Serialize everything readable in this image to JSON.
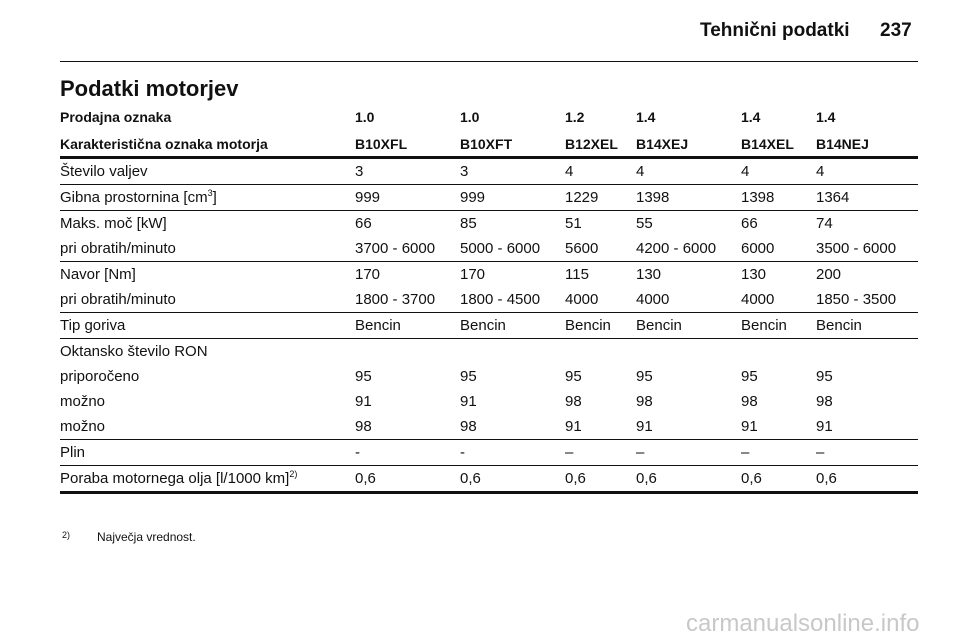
{
  "header": {
    "section": "Tehnični podatki",
    "page": "237"
  },
  "title": "Podatki motorjev",
  "table": {
    "head": [
      [
        "Prodajna oznaka",
        "1.0",
        "1.0",
        "1.2",
        "1.4",
        "1.4",
        "1.4"
      ],
      [
        "Karakteristična oznaka motorja",
        "B10XFL",
        "B10XFT",
        "B12XEL",
        "B14XEJ",
        "B14XEL",
        "B14NEJ"
      ]
    ],
    "groups": [
      [
        {
          "label": {
            "text": "Število valjev"
          },
          "values": [
            "3",
            "3",
            "4",
            "4",
            "4",
            "4"
          ]
        }
      ],
      [
        {
          "label": {
            "text": "Gibna prostornina [cm",
            "sup": "3",
            "tail": "]"
          },
          "values": [
            "999",
            "999",
            "1229",
            "1398",
            "1398",
            "1364"
          ]
        }
      ],
      [
        {
          "label": {
            "text": "Maks. moč [kW]"
          },
          "values": [
            "66",
            "85",
            "51",
            "55",
            "66",
            "74"
          ]
        },
        {
          "label": {
            "text": "pri obratih/minuto"
          },
          "values": [
            "3700 - 6000",
            "5000 - 6000",
            "5600",
            "4200 - 6000",
            "6000",
            "3500 - 6000"
          ]
        }
      ],
      [
        {
          "label": {
            "text": "Navor [Nm]"
          },
          "values": [
            "170",
            "170",
            "115",
            "130",
            "130",
            "200"
          ]
        },
        {
          "label": {
            "text": "pri obratih/minuto"
          },
          "values": [
            "1800 - 3700",
            "1800 - 4500",
            "4000",
            "4000",
            "4000",
            "1850 - 3500"
          ]
        }
      ],
      [
        {
          "label": {
            "text": "Tip goriva"
          },
          "values": [
            "Bencin",
            "Bencin",
            "Bencin",
            "Bencin",
            "Bencin",
            "Bencin"
          ]
        }
      ],
      [
        {
          "label": {
            "text": "Oktansko število RON"
          },
          "values": []
        },
        {
          "label": {
            "text": "priporočeno"
          },
          "values": [
            "95",
            "95",
            "95",
            "95",
            "95",
            "95"
          ]
        },
        {
          "label": {
            "text": "možno"
          },
          "values": [
            "91",
            "91",
            "98",
            "98",
            "98",
            "98"
          ]
        },
        {
          "label": {
            "text": "možno"
          },
          "values": [
            "98",
            "98",
            "91",
            "91",
            "91",
            "91"
          ]
        }
      ],
      [
        {
          "label": {
            "text": "Plin"
          },
          "values": [
            "-",
            "-",
            "–",
            "–",
            "–",
            "–"
          ]
        }
      ],
      [
        {
          "label": {
            "text": "Poraba motornega olja [l/1000 km]",
            "sup": "2)"
          },
          "values": [
            "0,6",
            "0,6",
            "0,6",
            "0,6",
            "0,6",
            "0,6"
          ]
        }
      ]
    ]
  },
  "footnote": {
    "mark": "2)",
    "text": "Največja vrednost."
  },
  "watermark": "carmanualsonline.info"
}
